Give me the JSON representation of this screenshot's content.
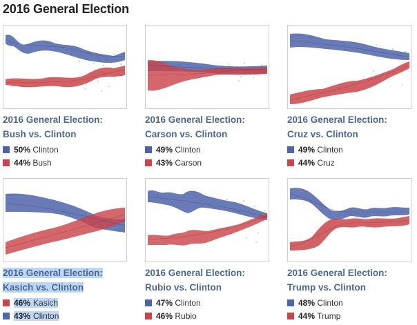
{
  "page_title": "2016 General Election",
  "colors": {
    "democrat": "#4e64a9",
    "republican": "#c9454a",
    "highlight": "#bcd6f5"
  },
  "cards": [
    {
      "title_line1": "2016 General Election:",
      "title_line2": "Bush vs. Clinton",
      "legend": [
        {
          "pct": "50%",
          "name": "Clinton",
          "party": "dem"
        },
        {
          "pct": "44%",
          "name": "Bush",
          "party": "rep"
        }
      ]
    },
    {
      "title_line1": "2016 General Election:",
      "title_line2": "Carson vs. Clinton",
      "legend": [
        {
          "pct": "49%",
          "name": "Clinton",
          "party": "dem"
        },
        {
          "pct": "43%",
          "name": "Carson",
          "party": "rep"
        }
      ]
    },
    {
      "title_line1": "2016 General Election:",
      "title_line2": "Cruz vs. Clinton",
      "legend": [
        {
          "pct": "49%",
          "name": "Clinton",
          "party": "dem"
        },
        {
          "pct": "44%",
          "name": "Cruz",
          "party": "rep"
        }
      ]
    },
    {
      "title_line1": "2016 General Election:",
      "title_line2": "Kasich vs. Clinton",
      "legend": [
        {
          "pct": "46%",
          "name": "Kasich",
          "party": "rep"
        },
        {
          "pct": "43%",
          "name": "Clinton",
          "party": "dem"
        }
      ]
    },
    {
      "title_line1": "2016 General Election:",
      "title_line2": "Rubio vs. Clinton",
      "legend": [
        {
          "pct": "47%",
          "name": "Clinton",
          "party": "dem"
        },
        {
          "pct": "46%",
          "name": "Rubio",
          "party": "rep"
        }
      ]
    },
    {
      "title_line1": "2016 General Election:",
      "title_line2": "Trump vs. Clinton",
      "legend": [
        {
          "pct": "48%",
          "name": "Clinton",
          "party": "dem"
        },
        {
          "pct": "44%",
          "name": "Trump",
          "party": "rep"
        }
      ]
    }
  ]
}
